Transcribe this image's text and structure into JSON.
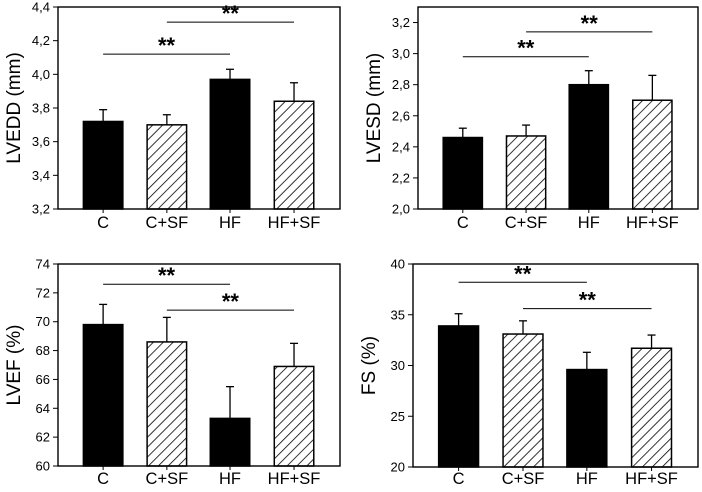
{
  "chart_data": [
    {
      "type": "bar",
      "ylabel": "LVEDD (mm)",
      "categories": [
        "C",
        "C+SF",
        "HF",
        "HF+SF"
      ],
      "values": [
        3.72,
        3.7,
        3.97,
        3.84
      ],
      "error_upper": [
        3.79,
        3.76,
        4.03,
        3.95
      ],
      "fills": [
        "solid",
        "hatched",
        "solid",
        "hatched"
      ],
      "ylim": [
        3.2,
        4.4
      ],
      "yticks": [
        3.2,
        3.4,
        3.6,
        3.8,
        4.0,
        4.2,
        4.4
      ],
      "ytick_labels": [
        "3,2",
        "3,4",
        "3,6",
        "3,8",
        "4,0",
        "4,2",
        "4,4"
      ],
      "significance": [
        {
          "from": "C",
          "to": "HF",
          "level": 4.12,
          "label": "**"
        },
        {
          "from": "C+SF",
          "to": "HF+SF",
          "level": 4.31,
          "label": "**"
        }
      ]
    },
    {
      "type": "bar",
      "ylabel": "LVESD (mm)",
      "categories": [
        "C",
        "C+SF",
        "HF",
        "HF+SF"
      ],
      "values": [
        2.46,
        2.47,
        2.8,
        2.7
      ],
      "error_upper": [
        2.52,
        2.54,
        2.89,
        2.86
      ],
      "fills": [
        "solid",
        "hatched",
        "solid",
        "hatched"
      ],
      "ylim": [
        2.0,
        3.3
      ],
      "yticks": [
        2.0,
        2.2,
        2.4,
        2.6,
        2.8,
        3.0,
        3.2
      ],
      "ytick_labels": [
        "2,0",
        "2,2",
        "2,4",
        "2,6",
        "2,8",
        "3,0",
        "3,2"
      ],
      "significance": [
        {
          "from": "C",
          "to": "HF",
          "level": 2.98,
          "label": "**"
        },
        {
          "from": "C+SF",
          "to": "HF+SF",
          "level": 3.14,
          "label": "**"
        }
      ]
    },
    {
      "type": "bar",
      "ylabel": "LVEF (%)",
      "categories": [
        "C",
        "C+SF",
        "HF",
        "HF+SF"
      ],
      "values": [
        69.8,
        68.6,
        63.3,
        66.9
      ],
      "error_upper": [
        71.2,
        70.3,
        65.5,
        68.5
      ],
      "fills": [
        "solid",
        "hatched",
        "solid",
        "hatched"
      ],
      "ylim": [
        60,
        74
      ],
      "yticks": [
        60,
        62,
        64,
        66,
        68,
        70,
        72,
        74
      ],
      "ytick_labels": [
        "60",
        "62",
        "64",
        "66",
        "68",
        "70",
        "72",
        "74"
      ],
      "significance": [
        {
          "from": "C",
          "to": "HF",
          "level": 72.6,
          "label": "**"
        },
        {
          "from": "C+SF",
          "to": "HF+SF",
          "level": 70.8,
          "label": "**"
        }
      ]
    },
    {
      "type": "bar",
      "ylabel": "FS (%)",
      "categories": [
        "C",
        "C+SF",
        "HF",
        "HF+SF"
      ],
      "values": [
        33.9,
        33.1,
        29.6,
        31.7
      ],
      "error_upper": [
        35.1,
        34.4,
        31.3,
        33.0
      ],
      "fills": [
        "solid",
        "hatched",
        "solid",
        "hatched"
      ],
      "ylim": [
        20,
        40
      ],
      "yticks": [
        20,
        25,
        30,
        35,
        40
      ],
      "ytick_labels": [
        "20",
        "25",
        "30",
        "35",
        "40"
      ],
      "significance": [
        {
          "from": "C",
          "to": "HF",
          "level": 38.2,
          "label": "**"
        },
        {
          "from": "C+SF",
          "to": "HF+SF",
          "level": 35.6,
          "label": "**"
        }
      ]
    }
  ]
}
